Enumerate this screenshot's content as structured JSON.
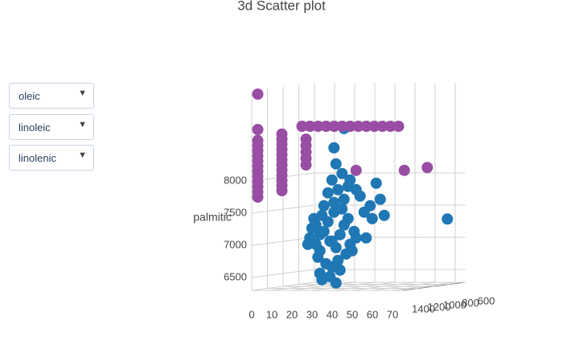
{
  "chart_data": {
    "type": "scatter3d",
    "title": "3d Scatter plot",
    "zlabel": "palmitic",
    "menus": [
      "oleic",
      "linoleic",
      "linolenic"
    ],
    "xlim": [
      0,
      75
    ],
    "xticks": [
      0,
      10,
      20,
      30,
      40,
      50,
      60,
      70
    ],
    "ylim": [
      600,
      1400
    ],
    "yticks": [
      1400,
      1200,
      1000,
      800,
      600
    ],
    "zlim": [
      6300,
      9400
    ],
    "zticks": [
      6500,
      7000,
      7500,
      8000
    ],
    "grid": true,
    "series": [
      {
        "color": "#1f77b4",
        "x": [
          25,
          28,
          30,
          32,
          35,
          38,
          40,
          42,
          45,
          48,
          27,
          31,
          34,
          37,
          41,
          44,
          29,
          33,
          36,
          39,
          43,
          26,
          30,
          35,
          40,
          46,
          32,
          37,
          42,
          28,
          34,
          39,
          44,
          50,
          36,
          41,
          31,
          38,
          24,
          47,
          52,
          55,
          48,
          45,
          58,
          60,
          56,
          53,
          62,
          38,
          37,
          42,
          70,
          30,
          36
        ],
        "y": [
          1300,
          1300,
          1300,
          1300,
          1300,
          1300,
          1300,
          1300,
          1300,
          1300,
          1300,
          1300,
          1300,
          1300,
          1300,
          1300,
          1300,
          1300,
          1300,
          1300,
          1300,
          1300,
          1300,
          1300,
          1300,
          1300,
          1300,
          1300,
          1300,
          1300,
          1300,
          1300,
          1300,
          1300,
          1300,
          1300,
          1300,
          1300,
          1300,
          1300,
          1300,
          1300,
          1300,
          1300,
          1300,
          1300,
          1300,
          1300,
          1300,
          1300,
          1300,
          1300,
          700,
          1300,
          1300
        ],
        "z": [
          7100,
          7000,
          6900,
          7200,
          7050,
          6950,
          7150,
          7300,
          7000,
          7100,
          7400,
          7450,
          7350,
          7500,
          7550,
          7400,
          6800,
          6700,
          6650,
          6750,
          6850,
          7250,
          6550,
          6500,
          6600,
          6900,
          7600,
          7650,
          7700,
          7300,
          7800,
          7850,
          7900,
          7750,
          8000,
          8100,
          6450,
          6400,
          7000,
          7200,
          7500,
          7600,
          7850,
          8000,
          7950,
          7700,
          7400,
          7100,
          7450,
          8250,
          8500,
          8800,
          7300,
          7150,
          7050
        ]
      },
      {
        "color": "#984ea3",
        "x": [
          3,
          3,
          3,
          3,
          3,
          3,
          3,
          3,
          3,
          3,
          3,
          3,
          3,
          3,
          15,
          15,
          15,
          15,
          15,
          15,
          15,
          15,
          15,
          15,
          15,
          15,
          27,
          27,
          27,
          27,
          27,
          25,
          29,
          33,
          37,
          41,
          45,
          49,
          53,
          57,
          61,
          65,
          69,
          73,
          60,
          72,
          48
        ],
        "y": [
          1400,
          1400,
          1400,
          1400,
          1400,
          1400,
          1400,
          1400,
          1400,
          1400,
          1400,
          1400,
          1400,
          1400,
          1400,
          1400,
          1400,
          1400,
          1400,
          1400,
          1400,
          1400,
          1400,
          1400,
          1400,
          1400,
          1400,
          1400,
          1400,
          1400,
          1400,
          1400,
          1400,
          1400,
          1400,
          1400,
          1400,
          1400,
          1400,
          1400,
          1400,
          1400,
          1400,
          1400,
          700,
          1300,
          1300
        ],
        "z": [
          7750,
          7830,
          7910,
          7990,
          8070,
          8150,
          8230,
          8310,
          8390,
          8470,
          8550,
          8630,
          8800,
          9350,
          7850,
          7930,
          8010,
          8090,
          8170,
          8250,
          8330,
          8410,
          8490,
          8570,
          8650,
          8730,
          8250,
          8350,
          8450,
          8550,
          8650,
          8850,
          8850,
          8850,
          8850,
          8850,
          8850,
          8850,
          8850,
          8850,
          8850,
          8850,
          8850,
          8850,
          8100,
          8150,
          8150
        ]
      }
    ]
  }
}
